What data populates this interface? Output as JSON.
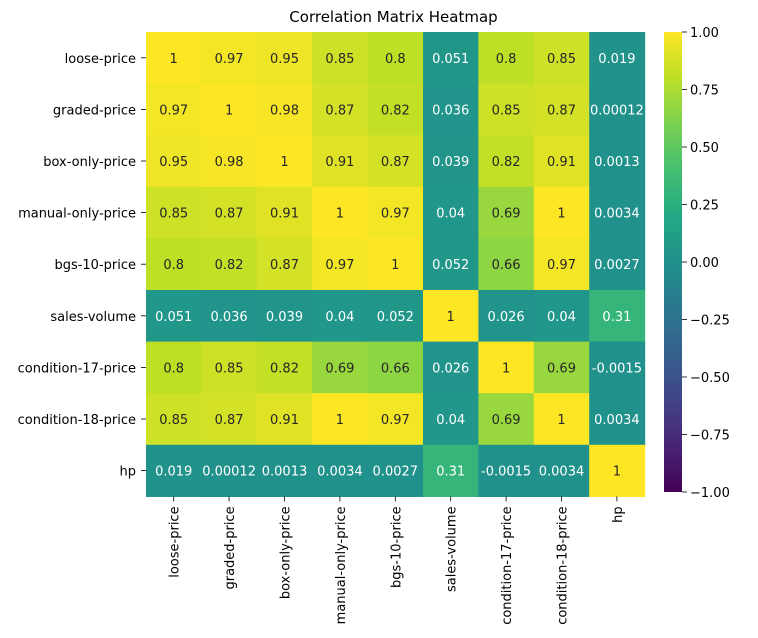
{
  "chart_data": {
    "type": "heatmap",
    "title": "Correlation Matrix Heatmap",
    "row_labels": [
      "loose-price",
      "graded-price",
      "box-only-price",
      "manual-only-price",
      "bgs-10-price",
      "sales-volume",
      "condition-17-price",
      "condition-18-price",
      "hp"
    ],
    "col_labels": [
      "loose-price",
      "graded-price",
      "box-only-price",
      "manual-only-price",
      "bgs-10-price",
      "sales-volume",
      "condition-17-price",
      "condition-18-price",
      "hp"
    ],
    "values": [
      [
        1,
        0.97,
        0.95,
        0.85,
        0.8,
        0.051,
        0.8,
        0.85,
        0.019
      ],
      [
        0.97,
        1,
        0.98,
        0.87,
        0.82,
        0.036,
        0.85,
        0.87,
        0.00012
      ],
      [
        0.95,
        0.98,
        1,
        0.91,
        0.87,
        0.039,
        0.82,
        0.91,
        0.0013
      ],
      [
        0.85,
        0.87,
        0.91,
        1,
        0.97,
        0.04,
        0.69,
        1,
        0.0034
      ],
      [
        0.8,
        0.82,
        0.87,
        0.97,
        1,
        0.052,
        0.66,
        0.97,
        0.0027
      ],
      [
        0.051,
        0.036,
        0.039,
        0.04,
        0.052,
        1,
        0.026,
        0.04,
        0.31
      ],
      [
        0.8,
        0.85,
        0.82,
        0.69,
        0.66,
        0.026,
        1,
        0.69,
        -0.0015
      ],
      [
        0.85,
        0.87,
        0.91,
        1,
        0.97,
        0.04,
        0.69,
        1,
        0.0034
      ],
      [
        0.019,
        0.00012,
        0.0013,
        0.0034,
        0.0027,
        0.31,
        -0.0015,
        0.0034,
        1
      ]
    ],
    "annotations": [
      [
        "1",
        "0.97",
        "0.95",
        "0.85",
        "0.8",
        "0.051",
        "0.8",
        "0.85",
        "0.019"
      ],
      [
        "0.97",
        "1",
        "0.98",
        "0.87",
        "0.82",
        "0.036",
        "0.85",
        "0.87",
        "0.00012"
      ],
      [
        "0.95",
        "0.98",
        "1",
        "0.91",
        "0.87",
        "0.039",
        "0.82",
        "0.91",
        "0.0013"
      ],
      [
        "0.85",
        "0.87",
        "0.91",
        "1",
        "0.97",
        "0.04",
        "0.69",
        "1",
        "0.0034"
      ],
      [
        "0.8",
        "0.82",
        "0.87",
        "0.97",
        "1",
        "0.052",
        "0.66",
        "0.97",
        "0.0027"
      ],
      [
        "0.051",
        "0.036",
        "0.039",
        "0.04",
        "0.052",
        "1",
        "0.026",
        "0.04",
        "0.31"
      ],
      [
        "0.8",
        "0.85",
        "0.82",
        "0.69",
        "0.66",
        "0.026",
        "1",
        "0.69",
        "-0.0015"
      ],
      [
        "0.85",
        "0.87",
        "0.91",
        "1",
        "0.97",
        "0.04",
        "0.69",
        "1",
        "0.0034"
      ],
      [
        "0.019",
        "0.00012",
        "0.0013",
        "0.0034",
        "0.0027",
        "0.31",
        "-0.0015",
        "0.0034",
        "1"
      ]
    ],
    "colormap": "viridis",
    "vmin": -1,
    "vmax": 1,
    "colorbar_ticks": [
      1.0,
      0.75,
      0.5,
      0.25,
      0.0,
      -0.25,
      -0.5,
      -0.75,
      -1.0
    ],
    "colorbar_tick_labels": [
      "1.00",
      "0.75",
      "0.50",
      "0.25",
      "0.00",
      "−0.25",
      "−0.50",
      "−0.75",
      "−1.00"
    ],
    "grid": false,
    "legend": "colorbar-right"
  }
}
